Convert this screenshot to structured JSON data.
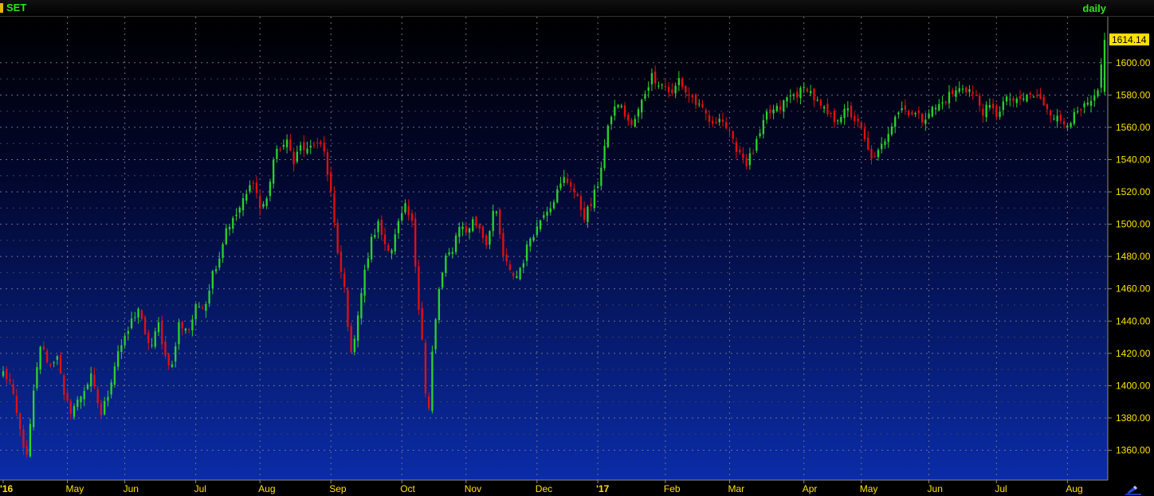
{
  "header": {
    "symbol": "SET",
    "period": "daily"
  },
  "colors": {
    "up": "#2bd12b",
    "down": "#e01010",
    "grid": "#6d7186",
    "axis_text": "#ffe100",
    "last_price_bg": "#ffe100",
    "symbol_marker": "#e8b400"
  },
  "icons": {
    "corner": "pencil-draw-icon"
  },
  "chart_data": {
    "type": "candlestick",
    "title": "SET",
    "period": "daily",
    "ylim": [
      1343,
      1628
    ],
    "y_ticks": [
      "1360.00",
      "1380.00",
      "1400.00",
      "1420.00",
      "1440.00",
      "1460.00",
      "1480.00",
      "1500.00",
      "1520.00",
      "1540.00",
      "1560.00",
      "1580.00",
      "1600.00"
    ],
    "last_price": "1614.14",
    "x_labels": [
      {
        "label": "'16",
        "bar": 0
      },
      {
        "label": "May",
        "bar": 19
      },
      {
        "label": "Jun",
        "bar": 36
      },
      {
        "label": "Jul",
        "bar": 57
      },
      {
        "label": "Aug",
        "bar": 76
      },
      {
        "label": "Sep",
        "bar": 97
      },
      {
        "label": "Oct",
        "bar": 118
      },
      {
        "label": "Nov",
        "bar": 137
      },
      {
        "label": "Dec",
        "bar": 158
      },
      {
        "label": "'17",
        "bar": 176
      },
      {
        "label": "Feb",
        "bar": 196
      },
      {
        "label": "Mar",
        "bar": 215
      },
      {
        "label": "Apr",
        "bar": 237
      },
      {
        "label": "May",
        "bar": 254
      },
      {
        "label": "Jun",
        "bar": 274
      },
      {
        "label": "Jul",
        "bar": 294
      },
      {
        "label": "Aug",
        "bar": 315
      }
    ],
    "legend": "none",
    "grid": true,
    "close_anchors": [
      [
        0,
        1408
      ],
      [
        2,
        1402
      ],
      [
        5,
        1372
      ],
      [
        7,
        1355
      ],
      [
        9,
        1395
      ],
      [
        11,
        1425
      ],
      [
        14,
        1412
      ],
      [
        16,
        1420
      ],
      [
        18,
        1392
      ],
      [
        20,
        1385
      ],
      [
        22,
        1390
      ],
      [
        24,
        1398
      ],
      [
        26,
        1405
      ],
      [
        29,
        1382
      ],
      [
        31,
        1395
      ],
      [
        34,
        1422
      ],
      [
        36,
        1428
      ],
      [
        38,
        1440
      ],
      [
        40,
        1448
      ],
      [
        42,
        1430
      ],
      [
        44,
        1425
      ],
      [
        46,
        1438
      ],
      [
        48,
        1418
      ],
      [
        50,
        1412
      ],
      [
        52,
        1438
      ],
      [
        55,
        1435
      ],
      [
        57,
        1448
      ],
      [
        60,
        1452
      ],
      [
        62,
        1470
      ],
      [
        64,
        1480
      ],
      [
        66,
        1498
      ],
      [
        68,
        1502
      ],
      [
        70,
        1510
      ],
      [
        72,
        1518
      ],
      [
        74,
        1528
      ],
      [
        76,
        1510
      ],
      [
        78,
        1515
      ],
      [
        80,
        1540
      ],
      [
        82,
        1548
      ],
      [
        84,
        1550
      ],
      [
        86,
        1540
      ],
      [
        88,
        1548
      ],
      [
        90,
        1545
      ],
      [
        92,
        1550
      ],
      [
        95,
        1545
      ],
      [
        97,
        1520
      ],
      [
        99,
        1480
      ],
      [
        101,
        1460
      ],
      [
        103,
        1418
      ],
      [
        105,
        1445
      ],
      [
        107,
        1470
      ],
      [
        109,
        1490
      ],
      [
        111,
        1500
      ],
      [
        113,
        1488
      ],
      [
        115,
        1485
      ],
      [
        117,
        1500
      ],
      [
        119,
        1510
      ],
      [
        121,
        1500
      ],
      [
        123,
        1450
      ],
      [
        124,
        1430
      ],
      [
        125,
        1395
      ],
      [
        126,
        1385
      ],
      [
        127,
        1420
      ],
      [
        129,
        1460
      ],
      [
        131,
        1478
      ],
      [
        133,
        1485
      ],
      [
        135,
        1500
      ],
      [
        137,
        1495
      ],
      [
        139,
        1502
      ],
      [
        141,
        1498
      ],
      [
        143,
        1488
      ],
      [
        145,
        1508
      ],
      [
        146,
        1505
      ],
      [
        148,
        1480
      ],
      [
        150,
        1470
      ],
      [
        152,
        1468
      ],
      [
        154,
        1478
      ],
      [
        156,
        1492
      ],
      [
        158,
        1498
      ],
      [
        160,
        1508
      ],
      [
        162,
        1512
      ],
      [
        164,
        1520
      ],
      [
        166,
        1528
      ],
      [
        168,
        1525
      ],
      [
        170,
        1515
      ],
      [
        172,
        1505
      ],
      [
        174,
        1512
      ],
      [
        176,
        1525
      ],
      [
        178,
        1548
      ],
      [
        180,
        1568
      ],
      [
        182,
        1575
      ],
      [
        184,
        1568
      ],
      [
        186,
        1560
      ],
      [
        188,
        1570
      ],
      [
        190,
        1582
      ],
      [
        192,
        1592
      ],
      [
        194,
        1588
      ],
      [
        196,
        1585
      ],
      [
        198,
        1580
      ],
      [
        200,
        1590
      ],
      [
        202,
        1582
      ],
      [
        204,
        1578
      ],
      [
        206,
        1572
      ],
      [
        208,
        1568
      ],
      [
        210,
        1560
      ],
      [
        212,
        1568
      ],
      [
        214,
        1560
      ],
      [
        216,
        1550
      ],
      [
        218,
        1545
      ],
      [
        220,
        1538
      ],
      [
        222,
        1545
      ],
      [
        224,
        1555
      ],
      [
        226,
        1568
      ],
      [
        228,
        1570
      ],
      [
        230,
        1572
      ],
      [
        232,
        1578
      ],
      [
        234,
        1580
      ],
      [
        236,
        1582
      ],
      [
        238,
        1585
      ],
      [
        240,
        1578
      ],
      [
        242,
        1572
      ],
      [
        244,
        1568
      ],
      [
        246,
        1565
      ],
      [
        248,
        1568
      ],
      [
        250,
        1570
      ],
      [
        252,
        1565
      ],
      [
        254,
        1558
      ],
      [
        256,
        1545
      ],
      [
        258,
        1540
      ],
      [
        260,
        1548
      ],
      [
        262,
        1558
      ],
      [
        264,
        1568
      ],
      [
        266,
        1572
      ],
      [
        268,
        1570
      ],
      [
        270,
        1568
      ],
      [
        272,
        1565
      ],
      [
        274,
        1570
      ],
      [
        276,
        1572
      ],
      [
        278,
        1575
      ],
      [
        280,
        1580
      ],
      [
        282,
        1582
      ],
      [
        284,
        1585
      ],
      [
        286,
        1583
      ],
      [
        288,
        1578
      ],
      [
        290,
        1570
      ],
      [
        292,
        1572
      ],
      [
        294,
        1568
      ],
      [
        296,
        1575
      ],
      [
        298,
        1578
      ],
      [
        300,
        1575
      ],
      [
        302,
        1578
      ],
      [
        304,
        1580
      ],
      [
        306,
        1578
      ],
      [
        308,
        1575
      ],
      [
        310,
        1570
      ],
      [
        312,
        1565
      ],
      [
        314,
        1563
      ],
      [
        316,
        1565
      ],
      [
        318,
        1568
      ],
      [
        320,
        1572
      ],
      [
        322,
        1575
      ],
      [
        324,
        1580
      ],
      [
        325,
        1598
      ],
      [
        326,
        1614.14
      ]
    ]
  }
}
